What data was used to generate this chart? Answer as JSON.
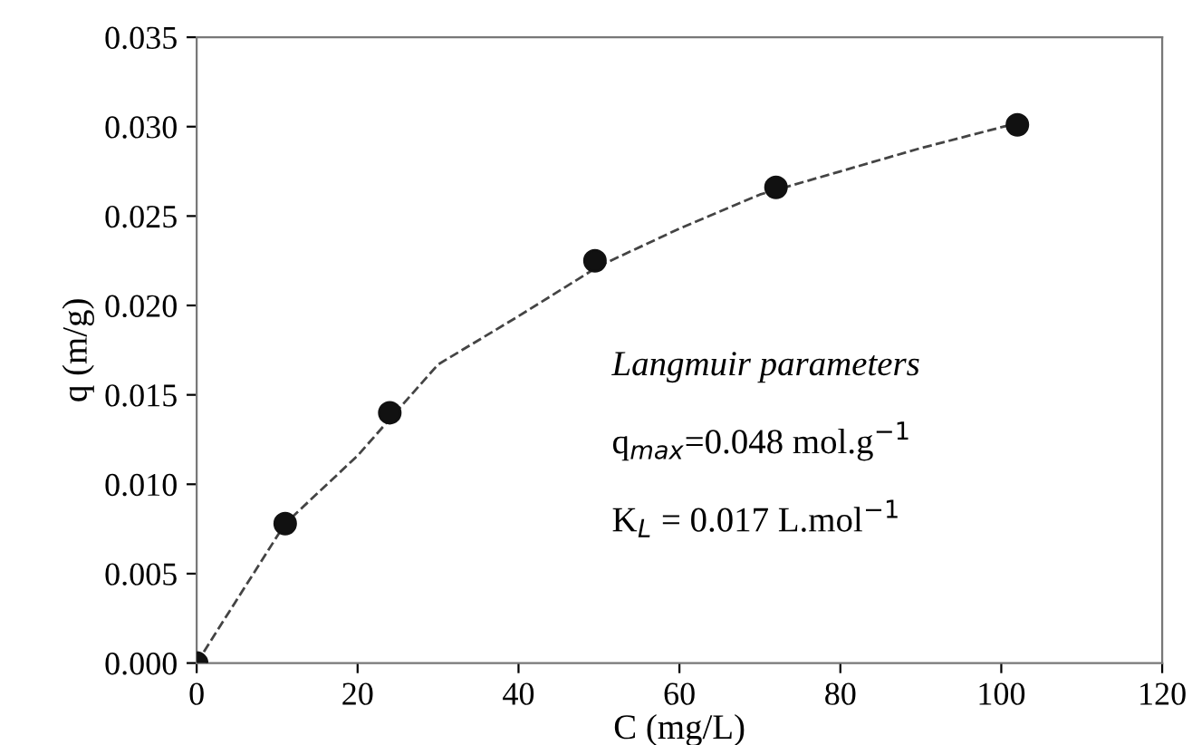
{
  "chart_data": {
    "type": "scatter",
    "xlabel": "C (mg/L)",
    "ylabel": "q (m/g)",
    "xlim": [
      0,
      120
    ],
    "xticks": [
      0,
      20,
      40,
      60,
      80,
      100,
      120
    ],
    "ylim": [
      0,
      0.035
    ],
    "yticks": [
      {
        "value": 0,
        "label": "0.000"
      },
      {
        "value": 0.005,
        "label": "0.005"
      },
      {
        "value": 0.01,
        "label": "0.010"
      },
      {
        "value": 0.015,
        "label": "0.015"
      },
      {
        "value": 0.02,
        "label": "0.020"
      },
      {
        "value": 0.025,
        "label": "0.025"
      },
      {
        "value": 0.03,
        "label": "0.030"
      },
      {
        "value": 0.035,
        "label": "0.035"
      }
    ],
    "grid": false,
    "series": [
      {
        "type": "line",
        "color": "#444444",
        "line_style": "dashed",
        "marker": "none",
        "x": [
          0,
          11,
          20,
          30,
          40,
          50,
          60,
          70,
          80,
          90,
          102
        ],
        "values": [
          0,
          0.0078,
          0.0116,
          0.0167,
          0.0194,
          0.0222,
          0.0243,
          0.0262,
          0.0275,
          0.0288,
          0.0302
        ]
      },
      {
        "color": "#111111",
        "marker": "circle",
        "x": [
          0,
          11,
          24,
          49.5,
          72,
          102
        ],
        "values": [
          0,
          0.0078,
          0.014,
          0.0225,
          0.0266,
          0.0301
        ]
      }
    ],
    "annotations": [
      "Langmuir parameters",
      "q$_{max}$=0.048 mol.g$^{−1}$",
      "K$_{L}$ = 0.017 L.mol$^{−1}$"
    ]
  }
}
